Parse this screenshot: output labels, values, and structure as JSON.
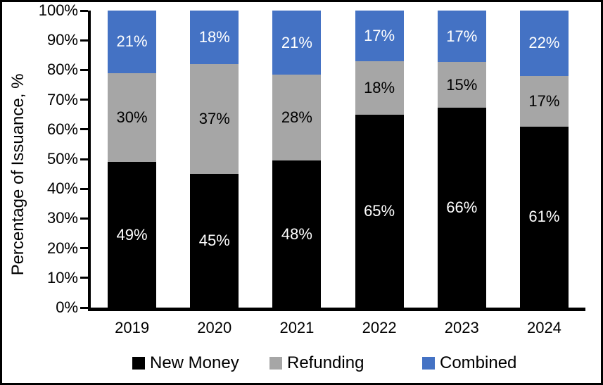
{
  "chart_data": {
    "type": "bar",
    "subtype": "stacked-percent-column",
    "title": "",
    "xlabel": "",
    "ylabel": "Percentage of Issuance, %",
    "ylim": [
      0,
      100
    ],
    "grid": false,
    "legend_position": "bottom",
    "value_suffix": "%",
    "categories": [
      "2019",
      "2020",
      "2021",
      "2022",
      "2023",
      "2024"
    ],
    "series": [
      {
        "name": "New Money",
        "color": "#000000",
        "label_color": "#ffffff",
        "values": [
          49,
          45,
          48,
          65,
          66,
          61
        ]
      },
      {
        "name": "Refunding",
        "color": "#A6A6A6",
        "label_color": "#000000",
        "values": [
          30,
          37,
          28,
          18,
          15,
          17
        ]
      },
      {
        "name": "Combined",
        "color": "#4472C4",
        "label_color": "#ffffff",
        "values": [
          21,
          18,
          21,
          17,
          17,
          22
        ]
      }
    ],
    "y_ticks": [
      "0%",
      "10%",
      "20%",
      "30%",
      "40%",
      "50%",
      "60%",
      "70%",
      "80%",
      "90%",
      "100%"
    ],
    "colors": {
      "axis": "#000000",
      "background": "#ffffff",
      "border": "#000000"
    }
  }
}
